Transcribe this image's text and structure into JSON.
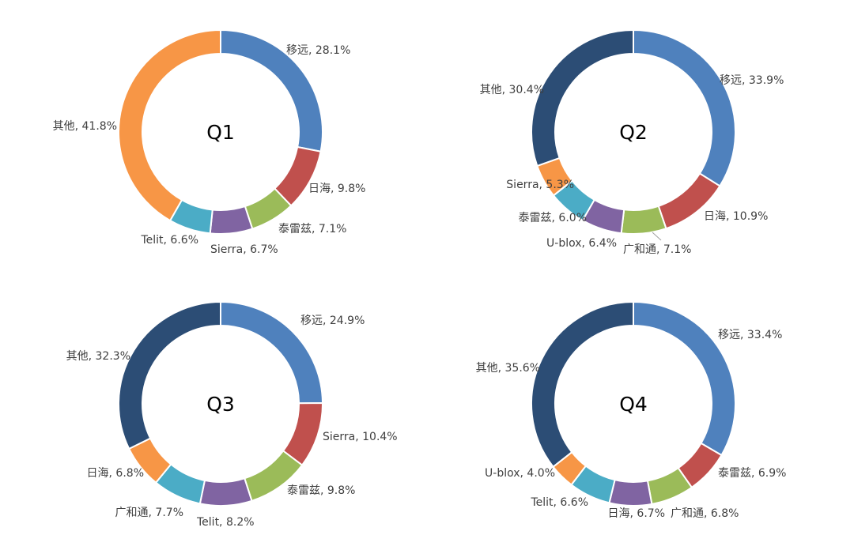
{
  "chart_data": [
    {
      "type": "pie",
      "title": "Q1",
      "slices": [
        {
          "label": "移远",
          "value": 28.1,
          "display": "移远, 28.1%",
          "color": "#4F81BD"
        },
        {
          "label": "日海",
          "value": 9.8,
          "display": "日海, 9.8%",
          "color": "#C0504D"
        },
        {
          "label": "泰雷兹",
          "value": 7.1,
          "display": "泰雷兹, 7.1%",
          "color": "#9BBB59"
        },
        {
          "label": "Sierra",
          "value": 6.7,
          "display": "Sierra, 6.7%",
          "color": "#8064A2"
        },
        {
          "label": "Telit",
          "value": 6.6,
          "display": "Telit, 6.6%",
          "color": "#4BACC6"
        },
        {
          "label": "其他",
          "value": 41.8,
          "display": "其他, 41.8%",
          "color": "#F79646"
        }
      ]
    },
    {
      "type": "pie",
      "title": "Q2",
      "slices": [
        {
          "label": "移远",
          "value": 33.9,
          "display": "移远, 33.9%",
          "color": "#4F81BD"
        },
        {
          "label": "日海",
          "value": 10.9,
          "display": "日海, 10.9%",
          "color": "#C0504D"
        },
        {
          "label": "广和通",
          "value": 7.1,
          "display": "广和通, 7.1%",
          "color": "#9BBB59"
        },
        {
          "label": "U-blox",
          "value": 6.4,
          "display": "U-blox, 6.4%",
          "color": "#8064A2"
        },
        {
          "label": "泰雷兹",
          "value": 6.0,
          "display": "泰雷兹, 6.0%",
          "color": "#4BACC6"
        },
        {
          "label": "Sierra",
          "value": 5.3,
          "display": "Sierra, 5.3%",
          "color": "#F79646"
        },
        {
          "label": "其他",
          "value": 30.4,
          "display": "其他, 30.4%",
          "color": "#2C4D75"
        }
      ]
    },
    {
      "type": "pie",
      "title": "Q3",
      "slices": [
        {
          "label": "移远",
          "value": 24.9,
          "display": "移远, 24.9%",
          "color": "#4F81BD"
        },
        {
          "label": "Sierra",
          "value": 10.4,
          "display": "Sierra, 10.4%",
          "color": "#C0504D"
        },
        {
          "label": "泰雷兹",
          "value": 9.8,
          "display": "泰雷兹, 9.8%",
          "color": "#9BBB59"
        },
        {
          "label": "Telit",
          "value": 8.2,
          "display": "Telit, 8.2%",
          "color": "#8064A2"
        },
        {
          "label": "广和通",
          "value": 7.7,
          "display": "广和通, 7.7%",
          "color": "#4BACC6"
        },
        {
          "label": "日海",
          "value": 6.8,
          "display": "日海, 6.8%",
          "color": "#F79646"
        },
        {
          "label": "其他",
          "value": 32.3,
          "display": "其他, 32.3%",
          "color": "#2C4D75"
        }
      ]
    },
    {
      "type": "pie",
      "title": "Q4",
      "slices": [
        {
          "label": "移远",
          "value": 33.4,
          "display": "移远, 33.4%",
          "color": "#4F81BD"
        },
        {
          "label": "泰雷兹",
          "value": 6.9,
          "display": "泰雷兹, 6.9%",
          "color": "#C0504D"
        },
        {
          "label": "广和通",
          "value": 6.8,
          "display": "广和通, 6.8%",
          "color": "#9BBB59"
        },
        {
          "label": "日海",
          "value": 6.7,
          "display": "日海, 6.7%",
          "color": "#8064A2"
        },
        {
          "label": "Telit",
          "value": 6.6,
          "display": "Telit, 6.6%",
          "color": "#4BACC6"
        },
        {
          "label": "U-blox",
          "value": 4.0,
          "display": "U-blox, 4.0%",
          "color": "#F79646"
        },
        {
          "label": "其他",
          "value": 35.6,
          "display": "其他, 35.6%",
          "color": "#2C4D75"
        }
      ]
    }
  ]
}
